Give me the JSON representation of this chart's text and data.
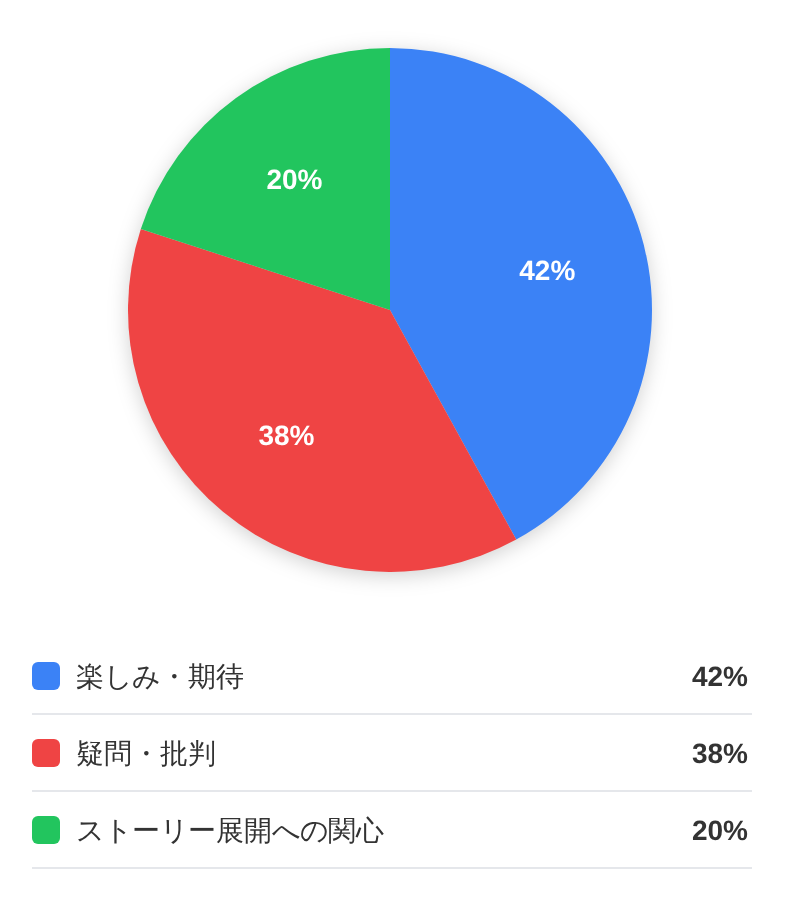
{
  "chart_data": {
    "type": "pie",
    "categories": [
      "楽しみ・期待",
      "疑問・批判",
      "ストーリー展開への関心"
    ],
    "values": [
      42,
      38,
      20
    ],
    "colors": [
      "#3b82f6",
      "#ef4444",
      "#22c55e"
    ],
    "value_labels": [
      "42%",
      "38%",
      "20%"
    ],
    "legend": "bottom"
  }
}
